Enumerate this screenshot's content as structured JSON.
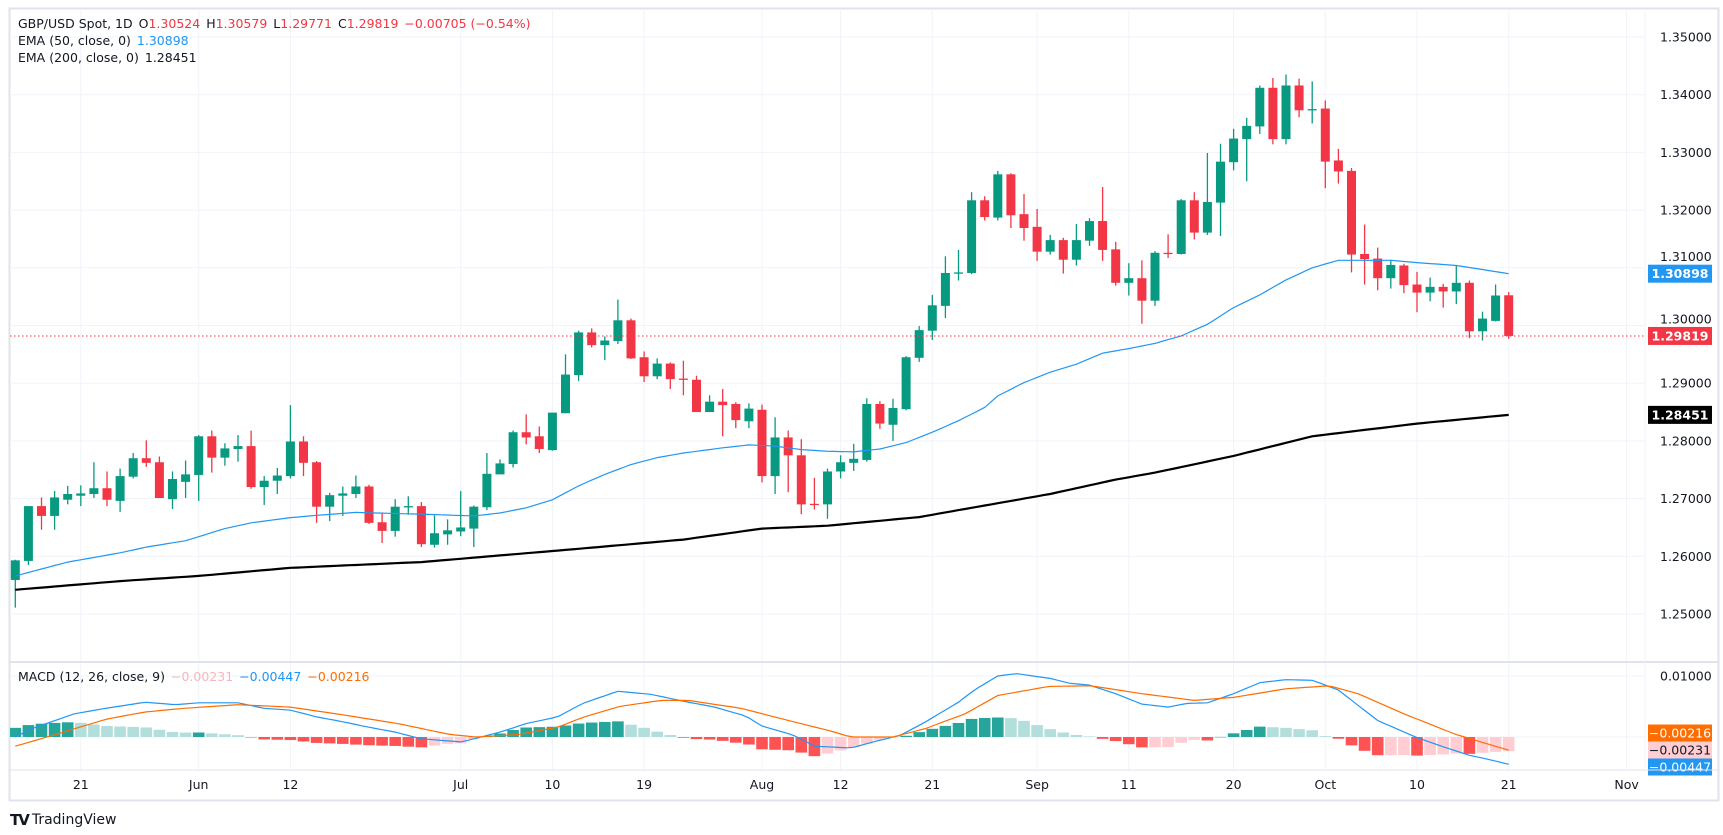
{
  "header": {
    "symbol": "GBP/USD Spot, 1D",
    "o_label": "O",
    "o_value": "1.30524",
    "h_label": "H",
    "h_value": "1.30579",
    "l_label": "L",
    "l_value": "1.29771",
    "c_label": "C",
    "c_value": "1.29819",
    "change": "−0.00705 (−0.54%)",
    "ema50_label": "EMA (50, close, 0)",
    "ema50_value": "1.30898",
    "ema200_label": "EMA (200, close, 0)",
    "ema200_value": "1.28451",
    "macd_label": "MACD (12, 26, close, 9)",
    "macd_hist_value": "−0.00231",
    "macd_value": "−0.00447",
    "macd_signal_value": "−0.00216"
  },
  "branding": {
    "logo_text": "TradingView",
    "logo_mark": "TV"
  },
  "colors": {
    "up": "#089981",
    "down": "#f23645",
    "ema50": "#2196f3",
    "ema200": "#000000",
    "macd": "#2196f3",
    "signal": "#ff6d00",
    "hist_up_strong": "#26a69a",
    "hist_up_weak": "#b2dfdb",
    "hist_down_strong": "#ff5252",
    "hist_down_weak": "#ffcdd2"
  },
  "chart_data": {
    "type": "candlestick",
    "title": "GBP/USD Spot, 1D",
    "price_axis": {
      "ticks": [
        "1.25000",
        "1.26000",
        "1.27000",
        "1.28000",
        "1.29000",
        "1.30000",
        "1.31000",
        "1.32000",
        "1.33000",
        "1.34000",
        "1.35000"
      ],
      "range": [
        1.243,
        1.352
      ]
    },
    "macd_axis": {
      "ticks": [
        "0.01000"
      ],
      "tick_values": [
        0.01
      ]
    },
    "time_axis": [
      {
        "label": "21",
        "bar": 6
      },
      {
        "label": "Jun",
        "bar": 15
      },
      {
        "label": "12",
        "bar": 22
      },
      {
        "label": "Jul",
        "bar": 35
      },
      {
        "label": "10",
        "bar": 42
      },
      {
        "label": "19",
        "bar": 49
      },
      {
        "label": "Aug",
        "bar": 58
      },
      {
        "label": "12",
        "bar": 64
      },
      {
        "label": "21",
        "bar": 71
      },
      {
        "label": "Sep",
        "bar": 79
      },
      {
        "label": "11",
        "bar": 86
      },
      {
        "label": "20",
        "bar": 94
      },
      {
        "label": "Oct",
        "bar": 101
      },
      {
        "label": "10",
        "bar": 108
      },
      {
        "label": "21",
        "bar": 115
      },
      {
        "label": "Nov",
        "bar": 124
      }
    ],
    "ohlc_fields": [
      "open",
      "high",
      "low",
      "close"
    ],
    "ohlc": [
      [
        1.2559,
        1.2594,
        1.2511,
        1.2593
      ],
      [
        1.2592,
        1.2687,
        1.2585,
        1.2687
      ],
      [
        1.2687,
        1.2702,
        1.2646,
        1.267
      ],
      [
        1.267,
        1.2713,
        1.2646,
        1.2702
      ],
      [
        1.2698,
        1.2722,
        1.269,
        1.2708
      ],
      [
        1.2705,
        1.2723,
        1.2687,
        1.2709
      ],
      [
        1.2708,
        1.2763,
        1.2701,
        1.2718
      ],
      [
        1.2718,
        1.2747,
        1.2687,
        1.2698
      ],
      [
        1.2696,
        1.2752,
        1.2677,
        1.2739
      ],
      [
        1.2738,
        1.2779,
        1.2735,
        1.277
      ],
      [
        1.277,
        1.2801,
        1.2755,
        1.2762
      ],
      [
        1.2763,
        1.2773,
        1.2701,
        1.2701
      ],
      [
        1.2699,
        1.2747,
        1.2682,
        1.2734
      ],
      [
        1.2729,
        1.2766,
        1.2701,
        1.2742
      ],
      [
        1.2741,
        1.281,
        1.2696,
        1.2808
      ],
      [
        1.2808,
        1.2818,
        1.2745,
        1.2771
      ],
      [
        1.2771,
        1.2796,
        1.2757,
        1.2787
      ],
      [
        1.2786,
        1.281,
        1.2764,
        1.2791
      ],
      [
        1.2791,
        1.2818,
        1.2717,
        1.272
      ],
      [
        1.272,
        1.2739,
        1.2689,
        1.2731
      ],
      [
        1.2731,
        1.2753,
        1.2708,
        1.274
      ],
      [
        1.2739,
        1.2862,
        1.2735,
        1.2799
      ],
      [
        1.2799,
        1.2808,
        1.2739,
        1.2762
      ],
      [
        1.2763,
        1.2765,
        1.2658,
        1.2686
      ],
      [
        1.2686,
        1.271,
        1.2661,
        1.2706
      ],
      [
        1.2705,
        1.2721,
        1.267,
        1.2709
      ],
      [
        1.2708,
        1.274,
        1.2701,
        1.2721
      ],
      [
        1.2721,
        1.2724,
        1.2656,
        1.2658
      ],
      [
        1.2659,
        1.2676,
        1.2623,
        1.2644
      ],
      [
        1.2644,
        1.2699,
        1.2634,
        1.2686
      ],
      [
        1.2686,
        1.2704,
        1.2672,
        1.2687
      ],
      [
        1.2687,
        1.2694,
        1.2616,
        1.2621
      ],
      [
        1.262,
        1.2671,
        1.2615,
        1.264
      ],
      [
        1.2638,
        1.2664,
        1.262,
        1.2645
      ],
      [
        1.2643,
        1.2713,
        1.2635,
        1.265
      ],
      [
        1.2648,
        1.2688,
        1.2616,
        1.2686
      ],
      [
        1.2685,
        1.2779,
        1.268,
        1.2743
      ],
      [
        1.2742,
        1.2768,
        1.2742,
        1.2761
      ],
      [
        1.276,
        1.2818,
        1.2754,
        1.2815
      ],
      [
        1.2815,
        1.2846,
        1.2794,
        1.2806
      ],
      [
        1.2808,
        1.2825,
        1.2779,
        1.2786
      ],
      [
        1.2784,
        1.2849,
        1.2783,
        1.2849
      ],
      [
        1.2848,
        1.295,
        1.2848,
        1.2915
      ],
      [
        1.2914,
        1.2991,
        1.2904,
        1.2988
      ],
      [
        1.2988,
        1.2995,
        1.2962,
        1.2966
      ],
      [
        1.2966,
        1.2981,
        1.294,
        1.2974
      ],
      [
        1.2973,
        1.3045,
        1.2968,
        1.3009
      ],
      [
        1.3009,
        1.3012,
        1.2942,
        1.2943
      ],
      [
        1.2945,
        1.2955,
        1.2902,
        1.2912
      ],
      [
        1.2912,
        1.2943,
        1.2907,
        1.2934
      ],
      [
        1.2934,
        1.2936,
        1.289,
        1.2907
      ],
      [
        1.2908,
        1.2939,
        1.2879,
        1.2907
      ],
      [
        1.2906,
        1.2913,
        1.285,
        1.285
      ],
      [
        1.285,
        1.2879,
        1.285,
        1.2868
      ],
      [
        1.2868,
        1.289,
        1.2808,
        1.2862
      ],
      [
        1.2864,
        1.2867,
        1.2822,
        1.2836
      ],
      [
        1.2834,
        1.2865,
        1.2822,
        1.2856
      ],
      [
        1.2854,
        1.2863,
        1.2728,
        1.2739
      ],
      [
        1.2739,
        1.2841,
        1.2708,
        1.2806
      ],
      [
        1.2806,
        1.2818,
        1.2711,
        1.2775
      ],
      [
        1.2775,
        1.2803,
        1.2673,
        1.269
      ],
      [
        1.2691,
        1.2736,
        1.2681,
        1.269
      ],
      [
        1.269,
        1.2752,
        1.2665,
        1.2747
      ],
      [
        1.2747,
        1.2775,
        1.2735,
        1.2763
      ],
      [
        1.2762,
        1.2795,
        1.2748,
        1.2769
      ],
      [
        1.2767,
        1.2874,
        1.2764,
        1.2864
      ],
      [
        1.2864,
        1.2869,
        1.2821,
        1.283
      ],
      [
        1.2828,
        1.2873,
        1.28,
        1.2857
      ],
      [
        1.2855,
        1.2947,
        1.2853,
        1.2945
      ],
      [
        1.2944,
        1.2999,
        1.2937,
        1.2992
      ],
      [
        1.2991,
        1.3053,
        1.2975,
        1.3035
      ],
      [
        1.3034,
        1.312,
        1.3013,
        1.3091
      ],
      [
        1.3091,
        1.3131,
        1.3078,
        1.3092
      ],
      [
        1.3091,
        1.3231,
        1.3089,
        1.3217
      ],
      [
        1.3217,
        1.3224,
        1.3182,
        1.3188
      ],
      [
        1.3187,
        1.3268,
        1.3182,
        1.3262
      ],
      [
        1.3262,
        1.3264,
        1.3169,
        1.3191
      ],
      [
        1.3193,
        1.3228,
        1.3147,
        1.3169
      ],
      [
        1.3171,
        1.3202,
        1.3112,
        1.3128
      ],
      [
        1.3128,
        1.3157,
        1.3123,
        1.3148
      ],
      [
        1.3148,
        1.3152,
        1.309,
        1.3114
      ],
      [
        1.3114,
        1.3176,
        1.3104,
        1.3148
      ],
      [
        1.3147,
        1.3186,
        1.3138,
        1.3181
      ],
      [
        1.3181,
        1.324,
        1.3112,
        1.3131
      ],
      [
        1.3132,
        1.3145,
        1.3069,
        1.3074
      ],
      [
        1.3074,
        1.3108,
        1.3052,
        1.3082
      ],
      [
        1.3082,
        1.3113,
        1.3003,
        1.3043
      ],
      [
        1.3043,
        1.3129,
        1.3034,
        1.3126
      ],
      [
        1.3126,
        1.3158,
        1.3117,
        1.3125
      ],
      [
        1.3124,
        1.3219,
        1.3123,
        1.3217
      ],
      [
        1.3217,
        1.3231,
        1.3149,
        1.3161
      ],
      [
        1.3161,
        1.3299,
        1.3157,
        1.3214
      ],
      [
        1.3213,
        1.3315,
        1.3155,
        1.3284
      ],
      [
        1.3283,
        1.3341,
        1.3269,
        1.3324
      ],
      [
        1.3323,
        1.336,
        1.325,
        1.3346
      ],
      [
        1.3345,
        1.3416,
        1.3332,
        1.3412
      ],
      [
        1.3412,
        1.3429,
        1.3314,
        1.3323
      ],
      [
        1.3323,
        1.3435,
        1.3314,
        1.3416
      ],
      [
        1.3416,
        1.3428,
        1.3361,
        1.3373
      ],
      [
        1.3374,
        1.3423,
        1.335,
        1.3375
      ],
      [
        1.3376,
        1.339,
        1.3238,
        1.3284
      ],
      [
        1.3286,
        1.3306,
        1.3246,
        1.3267
      ],
      [
        1.3268,
        1.3273,
        1.3092,
        1.3123
      ],
      [
        1.3124,
        1.3175,
        1.3071,
        1.3115
      ],
      [
        1.3116,
        1.3135,
        1.3061,
        1.3082
      ],
      [
        1.3082,
        1.3114,
        1.3064,
        1.3105
      ],
      [
        1.3104,
        1.3107,
        1.3056,
        1.307
      ],
      [
        1.3071,
        1.3093,
        1.3023,
        1.3057
      ],
      [
        1.3057,
        1.3083,
        1.3042,
        1.3067
      ],
      [
        1.3067,
        1.3072,
        1.3031,
        1.3059
      ],
      [
        1.3059,
        1.3104,
        1.3037,
        1.3074
      ],
      [
        1.3074,
        1.3078,
        1.2978,
        1.299
      ],
      [
        1.299,
        1.3024,
        1.2974,
        1.3012
      ],
      [
        1.3008,
        1.3071,
        1.3007,
        1.3052
      ],
      [
        1.30524,
        1.30579,
        1.29771,
        1.29819
      ]
    ],
    "ema50": [
      [
        1,
        1.2566
      ],
      [
        5,
        1.259
      ],
      [
        9,
        1.2606
      ],
      [
        11,
        1.2616
      ],
      [
        14,
        1.2627
      ],
      [
        17,
        1.2648
      ],
      [
        19,
        1.2658
      ],
      [
        22,
        1.2667
      ],
      [
        24,
        1.2671
      ],
      [
        27,
        1.2676
      ],
      [
        32,
        1.2673
      ],
      [
        36,
        1.267
      ],
      [
        38,
        1.2675
      ],
      [
        40,
        1.2684
      ],
      [
        42,
        1.2698
      ],
      [
        44,
        1.2722
      ],
      [
        46,
        1.2742
      ],
      [
        48,
        1.2759
      ],
      [
        50,
        1.2771
      ],
      [
        52,
        1.2779
      ],
      [
        55,
        1.2788
      ],
      [
        57,
        1.2793
      ],
      [
        59,
        1.2791
      ],
      [
        61,
        1.2785
      ],
      [
        63,
        1.2782
      ],
      [
        65,
        1.2781
      ],
      [
        67,
        1.2786
      ],
      [
        69,
        1.2797
      ],
      [
        71,
        1.2815
      ],
      [
        73,
        1.2835
      ],
      [
        75,
        1.2858
      ],
      [
        76,
        1.2878
      ],
      [
        78,
        1.2901
      ],
      [
        80,
        1.2919
      ],
      [
        82,
        1.2933
      ],
      [
        84,
        1.2952
      ],
      [
        86,
        1.296
      ],
      [
        88,
        1.2969
      ],
      [
        90,
        1.2982
      ],
      [
        92,
        1.3002
      ],
      [
        94,
        1.3031
      ],
      [
        96,
        1.3053
      ],
      [
        98,
        1.3079
      ],
      [
        100,
        1.31
      ],
      [
        102,
        1.3113
      ],
      [
        106,
        1.3113
      ],
      [
        108,
        1.3109
      ],
      [
        111,
        1.3104
      ],
      [
        113,
        1.3097
      ],
      [
        115,
        1.30898
      ]
    ],
    "ema200": [
      [
        1,
        1.2542
      ],
      [
        9,
        1.2557
      ],
      [
        15,
        1.2566
      ],
      [
        22,
        1.258
      ],
      [
        32,
        1.259
      ],
      [
        44,
        1.2613
      ],
      [
        52,
        1.2629
      ],
      [
        58,
        1.2648
      ],
      [
        63,
        1.2653
      ],
      [
        70,
        1.2668
      ],
      [
        80,
        1.2708
      ],
      [
        85,
        1.2733
      ],
      [
        88,
        1.2745
      ],
      [
        94,
        1.2774
      ],
      [
        100,
        1.2808
      ],
      [
        108,
        1.283
      ],
      [
        115,
        1.28451
      ]
    ],
    "macd": [
      [
        1,
        0.0
      ],
      [
        2.3,
        0.0014
      ],
      [
        5.5,
        0.0038
      ],
      [
        7.9,
        0.0047
      ],
      [
        10.9,
        0.0057
      ],
      [
        13.2,
        0.0053
      ],
      [
        15,
        0.0056
      ],
      [
        18,
        0.0056
      ],
      [
        20,
        0.0047
      ],
      [
        22,
        0.0044
      ],
      [
        24,
        0.0033
      ],
      [
        26,
        0.0025
      ],
      [
        28,
        0.0016
      ],
      [
        30,
        0.0008
      ],
      [
        32,
        -0.0003
      ],
      [
        35,
        -0.0008
      ],
      [
        36,
        -0.0003
      ],
      [
        38,
        0.0008
      ],
      [
        40,
        0.0022
      ],
      [
        42.4,
        0.0033
      ],
      [
        44.3,
        0.0055
      ],
      [
        47,
        0.0075
      ],
      [
        49.5,
        0.007
      ],
      [
        52.4,
        0.0057
      ],
      [
        54.4,
        0.0049
      ],
      [
        56.8,
        0.0034
      ],
      [
        58,
        0.0018
      ],
      [
        60.4,
        0.0003
      ],
      [
        62,
        -0.0015
      ],
      [
        64.8,
        -0.0018
      ],
      [
        66.5,
        -0.0008
      ],
      [
        68.6,
        0.0003
      ],
      [
        70.5,
        0.0025
      ],
      [
        73,
        0.0057
      ],
      [
        74.2,
        0.0077
      ],
      [
        76,
        0.01
      ],
      [
        77.4,
        0.0104
      ],
      [
        80,
        0.0096
      ],
      [
        81.5,
        0.0088
      ],
      [
        83,
        0.0085
      ],
      [
        85,
        0.0071
      ],
      [
        87,
        0.0054
      ],
      [
        89,
        0.0049
      ],
      [
        90.4,
        0.0055
      ],
      [
        92,
        0.0056
      ],
      [
        94,
        0.0071
      ],
      [
        96,
        0.0089
      ],
      [
        98,
        0.0094
      ],
      [
        100,
        0.0093
      ],
      [
        102,
        0.0077
      ],
      [
        105,
        0.0027
      ],
      [
        108,
        -0.0001
      ],
      [
        110,
        -0.0016
      ],
      [
        112,
        -0.003
      ],
      [
        113.5,
        -0.0037
      ],
      [
        115,
        -0.00447
      ]
    ],
    "signal": [
      [
        1,
        -0.0015
      ],
      [
        3.9,
        0.0003
      ],
      [
        5.9,
        0.0016
      ],
      [
        7.9,
        0.0029
      ],
      [
        10.9,
        0.0041
      ],
      [
        13.9,
        0.0047
      ],
      [
        18,
        0.0053
      ],
      [
        22,
        0.0049
      ],
      [
        26.1,
        0.0036
      ],
      [
        30.2,
        0.0022
      ],
      [
        34.2,
        0.0004
      ],
      [
        36.2,
        0.0
      ],
      [
        39.4,
        0.0004
      ],
      [
        42.4,
        0.0016
      ],
      [
        44.3,
        0.0032
      ],
      [
        47.1,
        0.005
      ],
      [
        50.3,
        0.006
      ],
      [
        52.4,
        0.006
      ],
      [
        56.4,
        0.0047
      ],
      [
        60.4,
        0.0025
      ],
      [
        63.2,
        0.001
      ],
      [
        64.8,
        0.0
      ],
      [
        68,
        0.0
      ],
      [
        70.5,
        0.0014
      ],
      [
        73.5,
        0.0038
      ],
      [
        76,
        0.0068
      ],
      [
        79.9,
        0.0083
      ],
      [
        83.1,
        0.0084
      ],
      [
        87,
        0.0071
      ],
      [
        91,
        0.006
      ],
      [
        94,
        0.0065
      ],
      [
        98,
        0.0079
      ],
      [
        101.3,
        0.0084
      ],
      [
        103.5,
        0.0071
      ],
      [
        107,
        0.0038
      ],
      [
        111,
        0.0004
      ],
      [
        115,
        -0.00216
      ]
    ],
    "price_labels": [
      {
        "name": "ema50",
        "value": 1.30898,
        "text": "1.30898"
      },
      {
        "name": "last-close",
        "value": 1.29819,
        "text": "1.29819"
      },
      {
        "name": "ema200",
        "value": 1.28451,
        "text": "1.28451"
      }
    ],
    "macd_labels": [
      {
        "name": "signal",
        "value": -0.00216,
        "text": "−0.00216"
      },
      {
        "name": "histogram",
        "value": -0.00231,
        "text": "−0.00231"
      },
      {
        "name": "macd",
        "value": -0.00447,
        "text": "−0.00447"
      }
    ]
  }
}
